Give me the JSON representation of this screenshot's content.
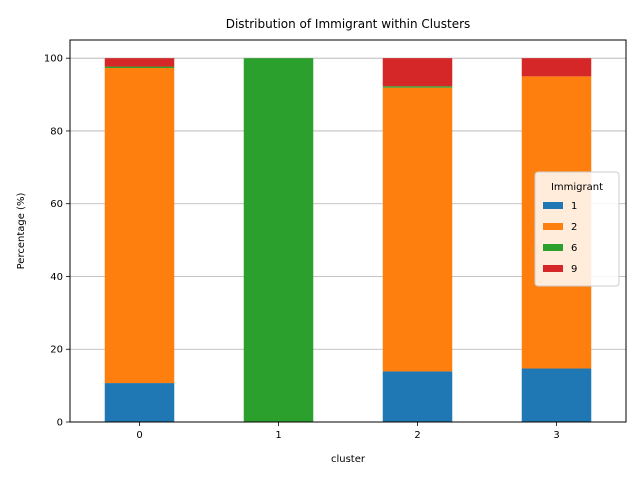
{
  "chart_data": {
    "type": "bar",
    "stacked": true,
    "title": "Distribution of Immigrant within Clusters",
    "xlabel": "cluster",
    "ylabel": "Percentage (%)",
    "categories": [
      "0",
      "1",
      "2",
      "3"
    ],
    "ylim": [
      0,
      105
    ],
    "yticks": [
      0,
      20,
      40,
      60,
      80,
      100
    ],
    "grid": "horizontal",
    "legend": {
      "title": "Immigrant",
      "placement": "center-right"
    },
    "series": [
      {
        "name": "1",
        "color": "#1f77b4",
        "values": [
          10.7,
          0,
          13.9,
          14.7
        ]
      },
      {
        "name": "2",
        "color": "#ff7f0e",
        "values": [
          86.6,
          0,
          78.0,
          80.3
        ]
      },
      {
        "name": "6",
        "color": "#2ca02c",
        "values": [
          0.4,
          100,
          0.4,
          0
        ]
      },
      {
        "name": "9",
        "color": "#d62728",
        "values": [
          2.3,
          0,
          7.7,
          5.0
        ]
      }
    ]
  }
}
